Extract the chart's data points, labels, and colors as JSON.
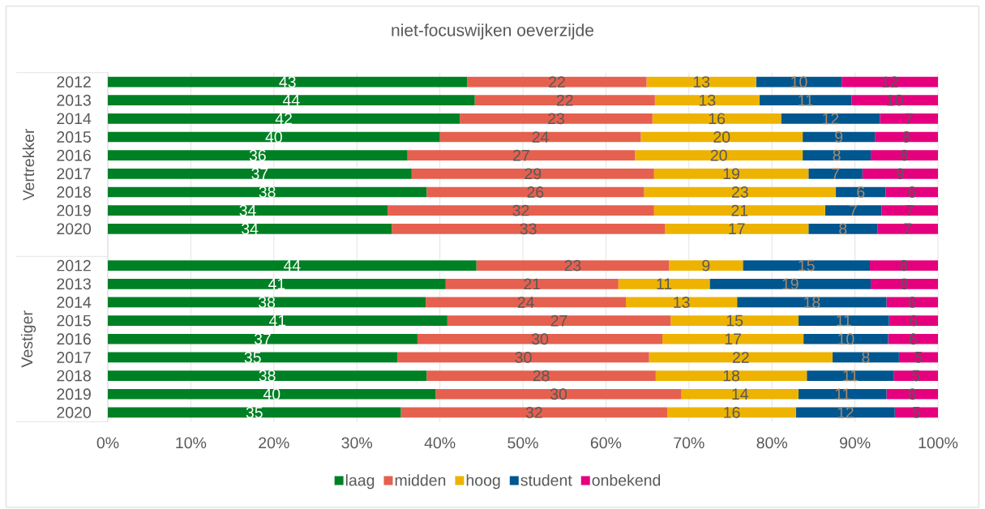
{
  "chart_data": [
    {
      "type": "bar",
      "orientation": "horizontal",
      "stacked": true,
      "title": "niet-focuswijken oeverzijde",
      "ylabel": "Vertrekker",
      "categories": [
        "2012",
        "2013",
        "2014",
        "2015",
        "2016",
        "2017",
        "2018",
        "2019",
        "2020"
      ],
      "xlim": [
        0,
        100
      ],
      "xticks": [
        0,
        10,
        20,
        30,
        40,
        50,
        60,
        70,
        80,
        90,
        100
      ],
      "tick_labels": "y",
      "grid": "x",
      "series": [
        {
          "color": "#008024",
          "values": [
            43.3,
            44.2,
            42.4,
            40.0,
            36.1,
            36.6,
            38.4,
            33.7,
            34.2
          ],
          "value_labels": [
            "43",
            "44",
            "42",
            "40",
            "36",
            "37",
            "38",
            "34",
            "34"
          ]
        },
        {
          "color": "#e5604f",
          "values": [
            21.6,
            21.7,
            23.2,
            24.2,
            27.4,
            29.2,
            26.2,
            32.1,
            32.9
          ],
          "value_labels": [
            "22",
            "22",
            "23",
            "24",
            "27",
            "29",
            "26",
            "32",
            "33"
          ]
        },
        {
          "color": "#edb300",
          "values": [
            13.2,
            12.6,
            15.5,
            19.5,
            20.2,
            18.6,
            23.1,
            20.6,
            17.3
          ],
          "value_labels": [
            "13",
            "13",
            "16",
            "20",
            "20",
            "19",
            "23",
            "21",
            "17"
          ]
        },
        {
          "color": "#00568f",
          "values": [
            10.3,
            11.1,
            11.9,
            8.7,
            8.2,
            6.5,
            6.0,
            6.8,
            8.3
          ],
          "value_labels": [
            "10",
            "11",
            "12",
            "9",
            "8",
            "7",
            "6",
            "7",
            "8"
          ]
        },
        {
          "color": "#e5007d",
          "values": [
            11.6,
            10.4,
            7.0,
            7.6,
            8.1,
            9.1,
            6.3,
            6.8,
            7.3
          ],
          "value_labels": [
            "12",
            "10",
            "7",
            "8",
            "8",
            "9",
            "6",
            "7",
            "7"
          ]
        }
      ]
    },
    {
      "type": "bar",
      "orientation": "horizontal",
      "stacked": true,
      "ylabel": "Vestiger",
      "categories": [
        "2012",
        "2013",
        "2014",
        "2015",
        "2016",
        "2017",
        "2018",
        "2019",
        "2020"
      ],
      "xlim": [
        0,
        100
      ],
      "xticks": [
        {
          "value": 0,
          "label": "0%"
        },
        {
          "value": 10,
          "label": "10%"
        },
        {
          "value": 20,
          "label": "20%"
        },
        {
          "value": 30,
          "label": "30%"
        },
        {
          "value": 40,
          "label": "40%"
        },
        {
          "value": 50,
          "label": "50%"
        },
        {
          "value": 60,
          "label": "60%"
        },
        {
          "value": 70,
          "label": "70%"
        },
        {
          "value": 80,
          "label": "80%"
        },
        {
          "value": 90,
          "label": "90%"
        },
        {
          "value": 100,
          "label": "100%"
        }
      ],
      "grid": "x",
      "legend": "bottom",
      "series": [
        {
          "name": "laag",
          "color": "#008024",
          "values": [
            44.4,
            40.7,
            38.3,
            40.9,
            37.3,
            34.9,
            38.4,
            39.5,
            35.3
          ],
          "value_labels": [
            "44",
            "41",
            "38",
            "41",
            "37",
            "35",
            "38",
            "40",
            "35"
          ]
        },
        {
          "name": "midden",
          "color": "#e5604f",
          "values": [
            23.2,
            20.8,
            24.1,
            26.9,
            29.5,
            30.3,
            27.6,
            29.6,
            32.1
          ],
          "value_labels": [
            "23",
            "21",
            "24",
            "27",
            "30",
            "30",
            "28",
            "30",
            "32"
          ]
        },
        {
          "name": "hoog",
          "color": "#edb300",
          "values": [
            8.9,
            11.0,
            13.4,
            15.4,
            17.0,
            22.1,
            18.2,
            14.1,
            15.5
          ],
          "value_labels": [
            "9",
            "11",
            "13",
            "15",
            "17",
            "22",
            "18",
            "14",
            "16"
          ]
        },
        {
          "name": "student",
          "color": "#00568f",
          "values": [
            15.3,
            19.4,
            18.0,
            10.9,
            10.2,
            8.0,
            10.5,
            10.6,
            11.9
          ],
          "value_labels": [
            "15",
            "19",
            "18",
            "11",
            "10",
            "8",
            "11",
            "11",
            "12"
          ]
        },
        {
          "name": "onbekend",
          "color": "#e5007d",
          "values": [
            8.2,
            8.1,
            6.2,
            5.9,
            6.0,
            4.7,
            5.3,
            6.2,
            5.2
          ],
          "value_labels": [
            "8",
            "8",
            "6",
            "6",
            "6",
            "5",
            "5",
            "6",
            "5"
          ]
        }
      ]
    }
  ]
}
